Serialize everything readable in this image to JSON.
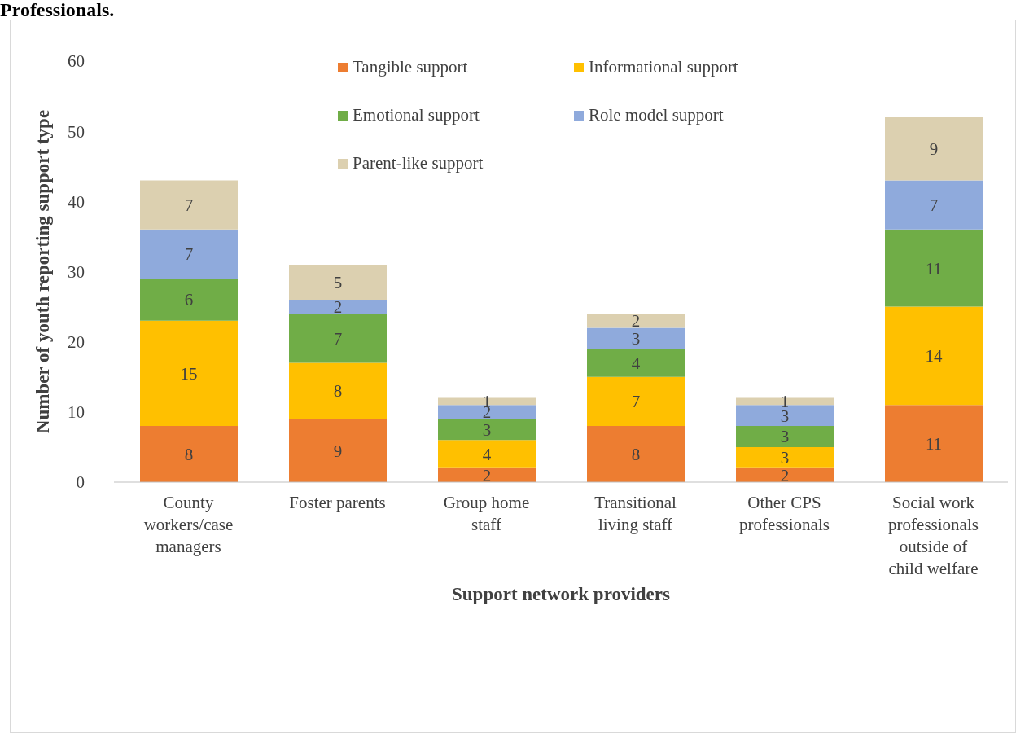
{
  "chart_data": {
    "type": "bar",
    "title": "Professionals.",
    "xlabel": "Support network providers",
    "ylabel": "Number of youth reporting support type",
    "categories": [
      "County workers/case managers",
      "Foster parents",
      "Group home staff",
      "Transitional living staff",
      "Other CPS professionals",
      "Social work professionals outside of child welfare"
    ],
    "stacked": true,
    "data_labels": true,
    "legend": "top",
    "grid": false,
    "ylim": [
      0,
      60
    ],
    "yticks": [
      0,
      10,
      20,
      30,
      40,
      50,
      60
    ],
    "series": [
      {
        "name": "Tangible support",
        "color": "#ed7d31",
        "values": [
          8,
          9,
          2,
          8,
          2,
          11
        ]
      },
      {
        "name": "Informational support",
        "color": "#ffc000",
        "values": [
          15,
          8,
          4,
          7,
          3,
          14
        ]
      },
      {
        "name": "Emotional support",
        "color": "#70ad47",
        "values": [
          6,
          7,
          3,
          4,
          3,
          11
        ]
      },
      {
        "name": "Role model support",
        "color": "#8faadc",
        "values": [
          7,
          2,
          2,
          3,
          3,
          7
        ]
      },
      {
        "name": "Parent-like support",
        "color": "#dcd0b0",
        "values": [
          7,
          5,
          1,
          2,
          1,
          9
        ]
      }
    ]
  }
}
